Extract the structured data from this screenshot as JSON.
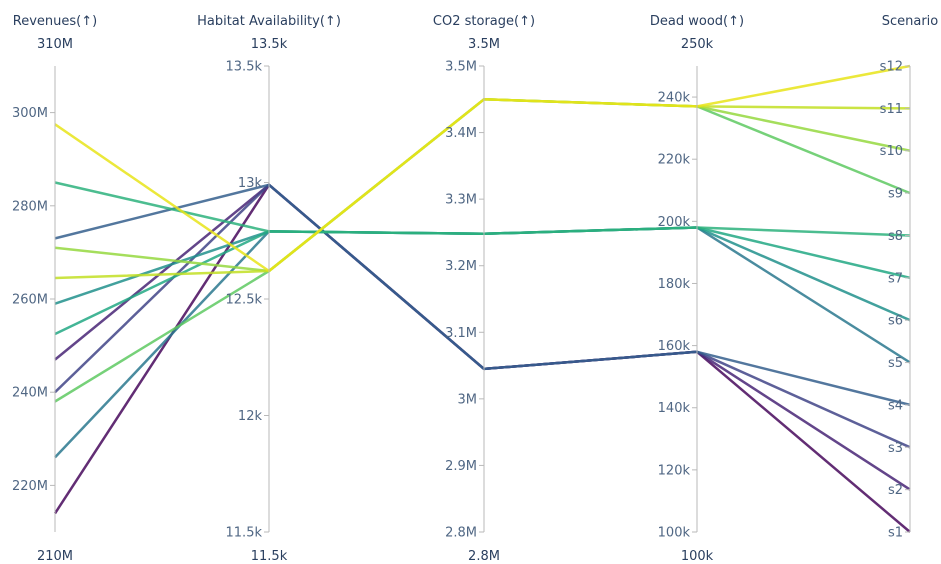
{
  "chart_data": {
    "type": "parallel_coordinates",
    "axes": [
      {
        "key": "revenues",
        "title": "Revenues(↑)",
        "range": [
          210000000,
          310000000
        ],
        "range_labels": {
          "top": "310M",
          "bottom": "210M"
        },
        "ticks": [
          {
            "value": 220000000,
            "label": "220M"
          },
          {
            "value": 240000000,
            "label": "240M"
          },
          {
            "value": 260000000,
            "label": "260M"
          },
          {
            "value": 280000000,
            "label": "280M"
          },
          {
            "value": 300000000,
            "label": "300M"
          }
        ]
      },
      {
        "key": "habitat",
        "title": "Habitat Availability(↑)",
        "range": [
          11500,
          13500
        ],
        "range_labels": {
          "top": "13.5k",
          "bottom": "11.5k"
        },
        "ticks": [
          {
            "value": 11500,
            "label": "11.5k"
          },
          {
            "value": 12000,
            "label": "12k"
          },
          {
            "value": 12500,
            "label": "12.5k"
          },
          {
            "value": 13000,
            "label": "13k"
          },
          {
            "value": 13500,
            "label": "13.5k"
          }
        ]
      },
      {
        "key": "co2",
        "title": "CO2 storage(↑)",
        "range": [
          2800000,
          3500000
        ],
        "range_labels": {
          "top": "3.5M",
          "bottom": "2.8M"
        },
        "ticks": [
          {
            "value": 2800000,
            "label": "2.8M"
          },
          {
            "value": 2900000,
            "label": "2.9M"
          },
          {
            "value": 3000000,
            "label": "3M"
          },
          {
            "value": 3100000,
            "label": "3.1M"
          },
          {
            "value": 3200000,
            "label": "3.2M"
          },
          {
            "value": 3300000,
            "label": "3.3M"
          },
          {
            "value": 3400000,
            "label": "3.4M"
          },
          {
            "value": 3500000,
            "label": "3.5M"
          }
        ]
      },
      {
        "key": "deadwood",
        "title": "Dead wood(↑)",
        "range": [
          100000,
          250000
        ],
        "range_labels": {
          "top": "250k",
          "bottom": "100k"
        },
        "ticks": [
          {
            "value": 100000,
            "label": "100k"
          },
          {
            "value": 120000,
            "label": "120k"
          },
          {
            "value": 140000,
            "label": "140k"
          },
          {
            "value": 160000,
            "label": "160k"
          },
          {
            "value": 180000,
            "label": "180k"
          },
          {
            "value": 200000,
            "label": "200k"
          },
          {
            "value": 220000,
            "label": "220k"
          },
          {
            "value": 240000,
            "label": "240k"
          }
        ]
      },
      {
        "key": "scenario",
        "title": "Scenario",
        "range": [
          1,
          12
        ],
        "ticks": [
          {
            "value": 1,
            "label": "s1"
          },
          {
            "value": 2,
            "label": "s2"
          },
          {
            "value": 3,
            "label": "s3"
          },
          {
            "value": 4,
            "label": "s4"
          },
          {
            "value": 5,
            "label": "s5"
          },
          {
            "value": 6,
            "label": "s6"
          },
          {
            "value": 7,
            "label": "s7"
          },
          {
            "value": 8,
            "label": "s8"
          },
          {
            "value": 9,
            "label": "s9"
          },
          {
            "value": 10,
            "label": "s10"
          },
          {
            "value": 11,
            "label": "s11"
          },
          {
            "value": 12,
            "label": "s12"
          }
        ]
      }
    ],
    "colorscale": "viridis",
    "series": [
      {
        "revenues": 214000000,
        "habitat": 12990,
        "co2": 3045000,
        "deadwood": 158000,
        "scenario": 1,
        "color": "#46085c"
      },
      {
        "revenues": 247000000,
        "habitat": 12990,
        "co2": 3045000,
        "deadwood": 158000,
        "scenario": 2,
        "color": "#482475"
      },
      {
        "revenues": 240000000,
        "habitat": 12990,
        "co2": 3045000,
        "deadwood": 158000,
        "scenario": 3,
        "color": "#414487"
      },
      {
        "revenues": 273000000,
        "habitat": 12990,
        "co2": 3045000,
        "deadwood": 158000,
        "scenario": 4,
        "color": "#355f8d"
      },
      {
        "revenues": 226000000,
        "habitat": 12790,
        "co2": 3248000,
        "deadwood": 198000,
        "scenario": 5,
        "color": "#2a788e"
      },
      {
        "revenues": 259000000,
        "habitat": 12790,
        "co2": 3248000,
        "deadwood": 198000,
        "scenario": 6,
        "color": "#21918c"
      },
      {
        "revenues": 252500000,
        "habitat": 12790,
        "co2": 3248000,
        "deadwood": 198000,
        "scenario": 7,
        "color": "#22a884"
      },
      {
        "revenues": 285000000,
        "habitat": 12790,
        "co2": 3248000,
        "deadwood": 198000,
        "scenario": 8,
        "color": "#2db27d"
      },
      {
        "revenues": 238000000,
        "habitat": 12620,
        "co2": 3450000,
        "deadwood": 237000,
        "scenario": 9,
        "color": "#5ec962"
      },
      {
        "revenues": 271000000,
        "habitat": 12620,
        "co2": 3450000,
        "deadwood": 237000,
        "scenario": 10,
        "color": "#95d840"
      },
      {
        "revenues": 264500000,
        "habitat": 12620,
        "co2": 3450000,
        "deadwood": 237000,
        "scenario": 11,
        "color": "#c2df23"
      },
      {
        "revenues": 297500000,
        "habitat": 12620,
        "co2": 3450000,
        "deadwood": 237000,
        "scenario": 12,
        "color": "#e8e419"
      }
    ]
  }
}
